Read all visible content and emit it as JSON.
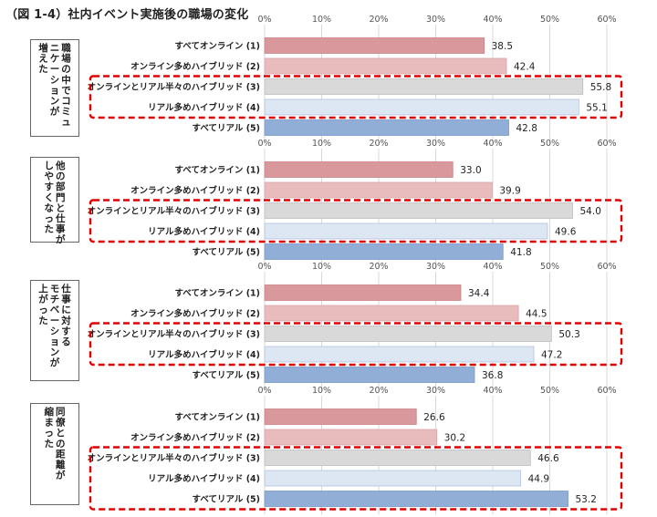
{
  "title": "（図 1-4）社内イベント実施後の職場の変化",
  "chart_data": [
    {
      "type": "bar",
      "orientation": "horizontal",
      "title": "職場の中でコミュニケーションが増えた",
      "title_lines": [
        "職場の中でコミュ",
        "ニケーションが",
        "増えた"
      ],
      "categories": [
        "すべてオンライン (1)",
        "オンライン多めハイブリッド (2)",
        "オンラインとリアル半々のハイブリッド (3)",
        "リアル多めハイブリッド (4)",
        "すべてリアル (5)"
      ],
      "values": [
        38.5,
        42.4,
        55.8,
        55.1,
        42.8
      ],
      "value_labels": [
        "38.5",
        "42.4",
        "55.8",
        "55.1",
        "42.8"
      ],
      "highlight": [
        2,
        3
      ],
      "xlim": [
        0,
        60
      ],
      "ticks": [
        "0%",
        "10%",
        "20%",
        "30%",
        "40%",
        "50%",
        "60%"
      ],
      "grid": true
    },
    {
      "type": "bar",
      "orientation": "horizontal",
      "title": "他の部門と仕事がしやすくなった",
      "title_lines": [
        "他の部門と仕事が",
        "しやすくなった"
      ],
      "categories": [
        "すべてオンライン (1)",
        "オンライン多めハイブリッド (2)",
        "オンラインとリアル半々のハイブリッド (3)",
        "リアル多めハイブリッド (4)",
        "すべてリアル (5)"
      ],
      "values": [
        33.0,
        39.9,
        54.0,
        49.6,
        41.8
      ],
      "value_labels": [
        "33.0",
        "39.9",
        "54.0",
        "49.6",
        "41.8"
      ],
      "highlight": [
        2,
        3
      ],
      "xlim": [
        0,
        60
      ],
      "ticks": [
        "0%",
        "10%",
        "20%",
        "30%",
        "40%",
        "50%",
        "60%"
      ],
      "grid": true
    },
    {
      "type": "bar",
      "orientation": "horizontal",
      "title": "仕事に対するモチベーションが上がった",
      "title_lines": [
        "仕事に対する",
        "モチベーションが",
        "上がった"
      ],
      "categories": [
        "すべてオンライン (1)",
        "オンライン多めハイブリッド (2)",
        "オンラインとリアル半々のハイブリッド (3)",
        "リアル多めハイブリッド (4)",
        "すべてリアル (5)"
      ],
      "values": [
        34.4,
        44.5,
        50.3,
        47.2,
        36.8
      ],
      "value_labels": [
        "34.4",
        "44.5",
        "50.3",
        "47.2",
        "36.8"
      ],
      "highlight": [
        2,
        3
      ],
      "xlim": [
        0,
        60
      ],
      "ticks": [
        "0%",
        "10%",
        "20%",
        "30%",
        "40%",
        "50%",
        "60%"
      ],
      "grid": true
    },
    {
      "type": "bar",
      "orientation": "horizontal",
      "title": "同僚との距離が縮まった",
      "title_lines": [
        "同僚との距離が",
        "縮まった"
      ],
      "categories": [
        "すべてオンライン (1)",
        "オンライン多めハイブリッド (2)",
        "オンラインとリアル半々のハイブリッド (3)",
        "リアル多めハイブリッド (4)",
        "すべてリアル (5)"
      ],
      "values": [
        26.6,
        30.2,
        46.6,
        44.9,
        53.2
      ],
      "value_labels": [
        "26.6",
        "30.2",
        "46.6",
        "44.9",
        "53.2"
      ],
      "highlight": [
        2,
        3,
        4
      ],
      "xlim": [
        0,
        60
      ],
      "ticks": [
        "0%",
        "10%",
        "20%",
        "30%",
        "40%",
        "50%",
        "60%"
      ],
      "grid": true
    }
  ],
  "colors": {
    "bars": [
      "#d9989b",
      "#e8bbbc",
      "#d9d9d9",
      "#dde6f3",
      "#91aed6"
    ],
    "bar_borders": [
      "#c98286",
      "#d9a6a8",
      "#bdbdbd",
      "#b4c4de",
      "#7a99c6"
    ],
    "highlight_box": "#e00000",
    "grid": "#d9d9d9",
    "tick_text": "#555555"
  }
}
